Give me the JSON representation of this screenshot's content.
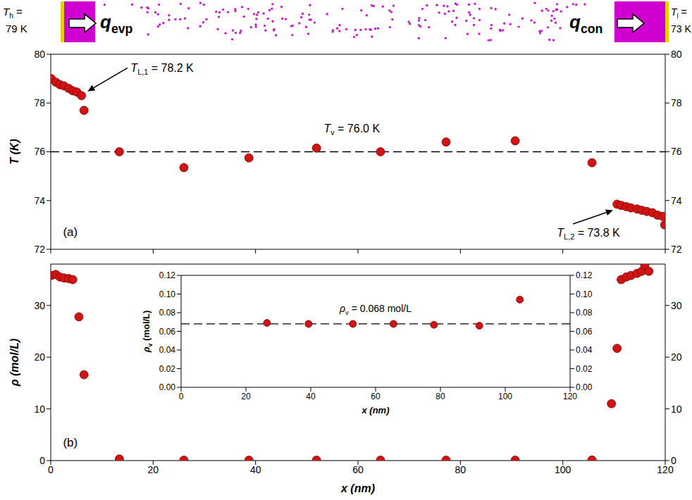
{
  "header": {
    "hot": {
      "symbol": "T",
      "subscript": "h",
      "text": "=",
      "line2": "79 K"
    },
    "cold": {
      "symbol": "T",
      "subscript": "l",
      "text": "=",
      "line2": "73 K"
    },
    "evaporation_flux": {
      "symbol": "q",
      "subscript": "evp"
    },
    "condensation_flux": {
      "symbol": "q",
      "subscript": "con"
    }
  },
  "chart_data": [
    {
      "type": "scatter",
      "panel_label": "(a)",
      "y_label": "T (K)",
      "xlim": [
        0,
        120
      ],
      "xticks": [
        0,
        20,
        40,
        60,
        80,
        100,
        120
      ],
      "ylim": [
        72,
        80
      ],
      "yticks": [
        72,
        74,
        76,
        78,
        80
      ],
      "y2lim": [
        72,
        80
      ],
      "y2ticks": [
        72,
        74,
        76,
        78,
        80
      ],
      "tick_labels": "y",
      "color": "#d01414",
      "marker": "circle",
      "x": [
        0.1,
        1.0,
        1.8,
        2.6,
        3.5,
        4.3,
        5.1,
        6.0,
        6.5,
        13.4,
        26.0,
        38.7,
        51.9,
        64.4,
        77.2,
        90.7,
        105.7,
        110.6,
        111.4,
        112.4,
        113.3,
        114.5,
        115.4,
        116.4,
        117.5,
        118.5,
        119.5,
        119.9
      ],
      "values": [
        79.0,
        78.85,
        78.75,
        78.7,
        78.6,
        78.5,
        78.45,
        78.3,
        77.7,
        76.0,
        75.35,
        75.75,
        76.15,
        76.0,
        76.4,
        76.45,
        75.55,
        73.85,
        73.8,
        73.75,
        73.7,
        73.65,
        73.6,
        73.55,
        73.5,
        73.4,
        73.35,
        73.0
      ],
      "reference_lines": [
        {
          "y": 76.0,
          "line_style": "dashed",
          "label": {
            "symbol": "T",
            "subscript": "v",
            "text": "= 76.0 K"
          }
        }
      ],
      "annotations": [
        {
          "symbol": "T",
          "subscript": "L,1",
          "text": "= 78.2 K"
        },
        {
          "symbol": "T",
          "subscript": "L,2",
          "text": "= 73.8 K"
        }
      ]
    },
    {
      "type": "scatter",
      "panel_label": "(b)",
      "x_label": "x (nm)",
      "y_label": "ρ (mol/L)",
      "xlim": [
        0,
        120
      ],
      "xticks": [
        0,
        20,
        40,
        60,
        80,
        100,
        120
      ],
      "ylim": [
        0,
        38
      ],
      "yticks": [
        0,
        10,
        20,
        30
      ],
      "y2lim": [
        0,
        38
      ],
      "y2ticks": [
        0,
        10,
        20,
        30
      ],
      "color": "#d01414",
      "marker": "circle",
      "x": [
        0.1,
        1.0,
        1.8,
        2.6,
        3.5,
        4.3,
        5.5,
        6.5,
        13.4,
        26.0,
        38.7,
        51.9,
        64.4,
        77.2,
        90.7,
        105.7,
        109.5,
        110.6,
        111.4,
        112.4,
        113.3,
        114.5,
        115.4,
        116.0,
        116.8
      ],
      "values": [
        35.8,
        36.0,
        35.5,
        35.3,
        35.2,
        35.0,
        27.8,
        16.6,
        0.3,
        0.07,
        0.07,
        0.07,
        0.07,
        0.07,
        0.07,
        0.1,
        11.0,
        21.7,
        35.0,
        35.5,
        35.8,
        36.2,
        36.6,
        37.8,
        36.6
      ]
    },
    {
      "type": "scatter",
      "x_label": "x (nm)",
      "y_label": {
        "symbol": "ρ",
        "subscript": "v",
        "text": "(mol/L)"
      },
      "xlim": [
        0,
        120
      ],
      "xticks": [
        0,
        20,
        40,
        60,
        80,
        100,
        120
      ],
      "ylim": [
        0,
        0.12
      ],
      "yticks": [
        {
          "value": 0,
          "label": "0.00"
        },
        0.02,
        0.04,
        0.06,
        0.08,
        {
          "value": 0.1,
          "label": "0.10"
        },
        0.12
      ],
      "y2lim": [
        0,
        0.12
      ],
      "y2ticks": [
        {
          "value": 0,
          "label": "0.00"
        },
        0.02,
        0.04,
        0.06,
        0.08,
        {
          "value": 0.1,
          "label": "0.10"
        },
        0.12
      ],
      "color": "#d01414",
      "marker": "circle",
      "x": [
        26.5,
        39.3,
        53.0,
        65.5,
        78.0,
        92.0,
        104.5
      ],
      "values": [
        0.069,
        0.068,
        0.068,
        0.068,
        0.067,
        0.066,
        0.094
      ],
      "reference_lines": [
        {
          "y": 0.068,
          "line_style": "dashed",
          "label": {
            "symbol": "ρ",
            "subscript": "v",
            "text": "= 0.068 mol/L"
          }
        }
      ]
    }
  ]
}
